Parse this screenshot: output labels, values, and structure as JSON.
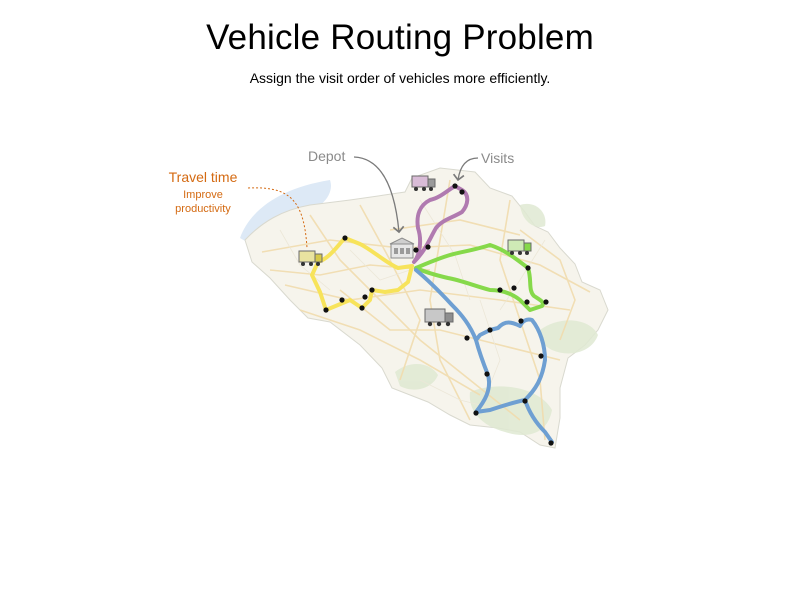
{
  "header": {
    "title": "Vehicle Routing Problem",
    "subtitle": "Assign the visit order of vehicles more efficiently."
  },
  "labels": {
    "depot": "Depot",
    "visits": "Visits",
    "travel_time": "Travel time",
    "improve": "Improve",
    "productivity": "productivity"
  },
  "routes": [
    {
      "color": "#f7e35a"
    },
    {
      "color": "#b07ab0"
    },
    {
      "color": "#86d94a"
    },
    {
      "color": "#6e9fd2"
    }
  ],
  "colors": {
    "land": "#f6f4ec",
    "sea": "#dde9f6",
    "forest": "#dfe9d2",
    "road": "#f1dcae",
    "accent": "#d46a12",
    "label_gray": "#8a8a8a",
    "stop": "#111111"
  }
}
